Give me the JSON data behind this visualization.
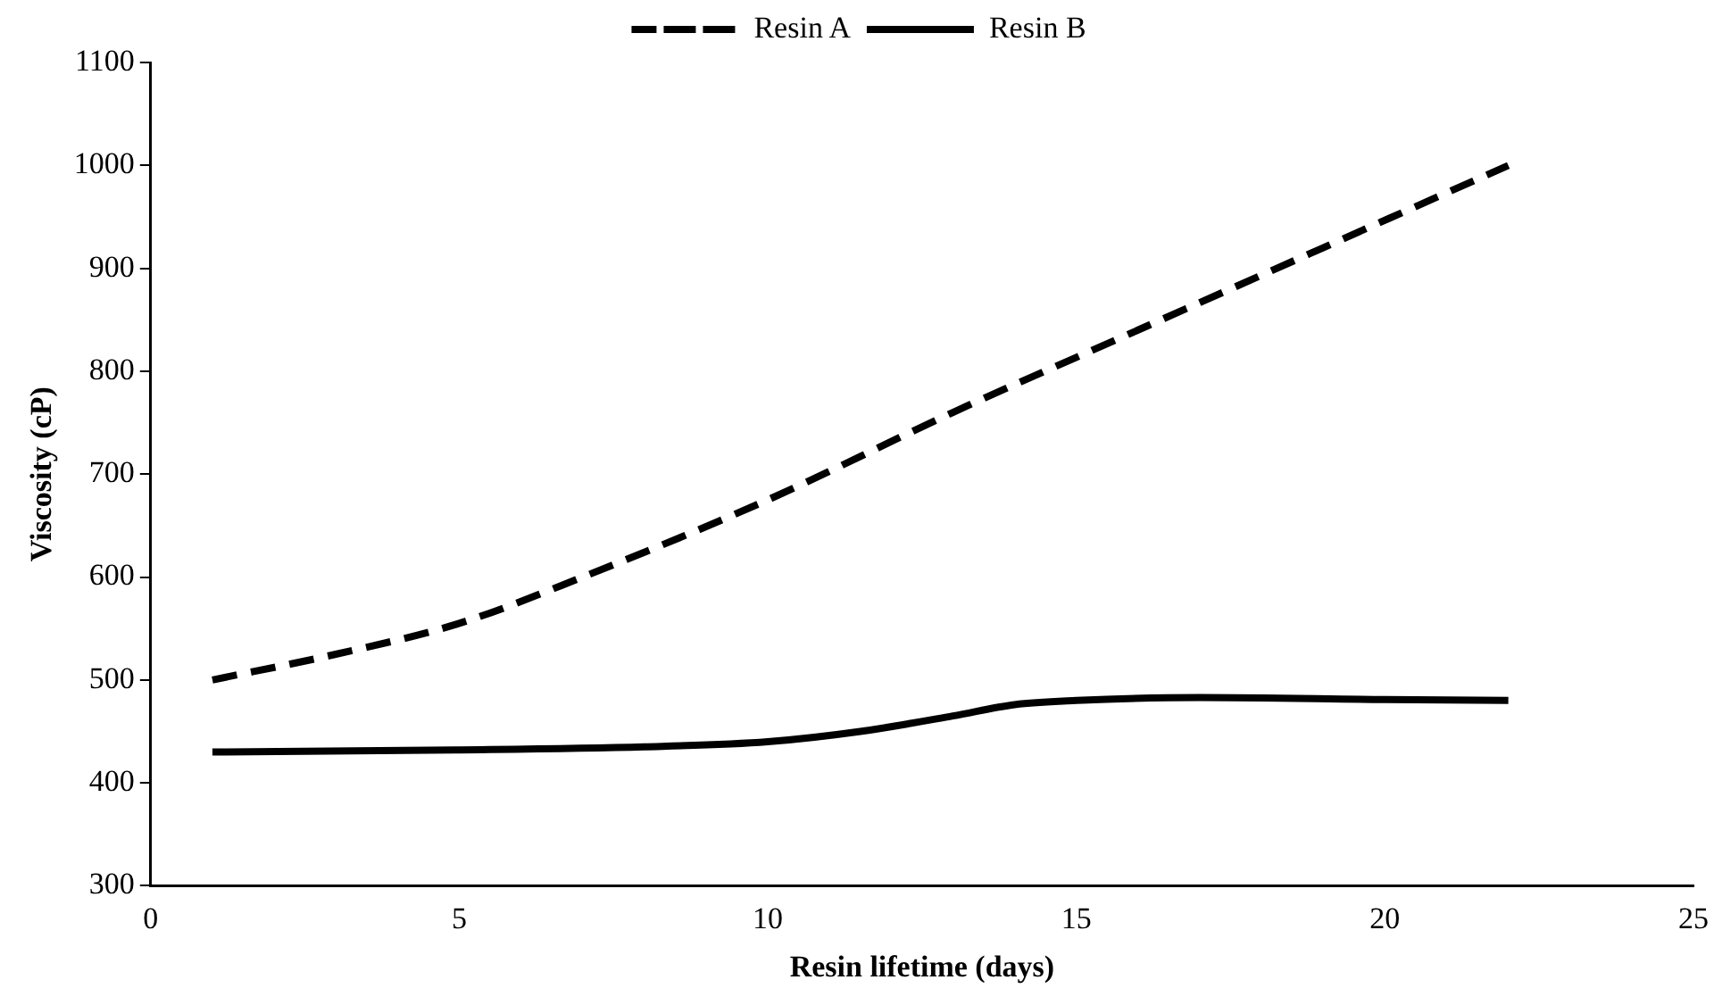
{
  "chart_data": {
    "type": "line",
    "xlabel": "Resin lifetime (days)",
    "ylabel": "Viscosity (cP)",
    "xlim": [
      0,
      25
    ],
    "xticks": [
      0,
      5,
      10,
      15,
      20,
      25
    ],
    "ylim": [
      300,
      1100
    ],
    "yticks": [
      300,
      400,
      500,
      600,
      700,
      800,
      900,
      1000,
      1100
    ],
    "grid": false,
    "legend": "top",
    "marker": "none",
    "series": [
      {
        "name": "Resin A",
        "color": "#000000",
        "line_style": "dashed",
        "x": [
          1,
          3,
          5,
          7,
          10,
          13,
          16,
          19,
          22
        ],
        "values": [
          500,
          525,
          555,
          600,
          675,
          760,
          840,
          920,
          1000
        ]
      },
      {
        "name": "Resin B",
        "color": "#000000",
        "line_style": "solid",
        "x": [
          1,
          5,
          8,
          10,
          11.5,
          13,
          14,
          15,
          17,
          20,
          22
        ],
        "values": [
          430,
          432,
          435,
          440,
          450,
          465,
          476,
          480,
          483,
          481,
          480
        ]
      }
    ]
  }
}
